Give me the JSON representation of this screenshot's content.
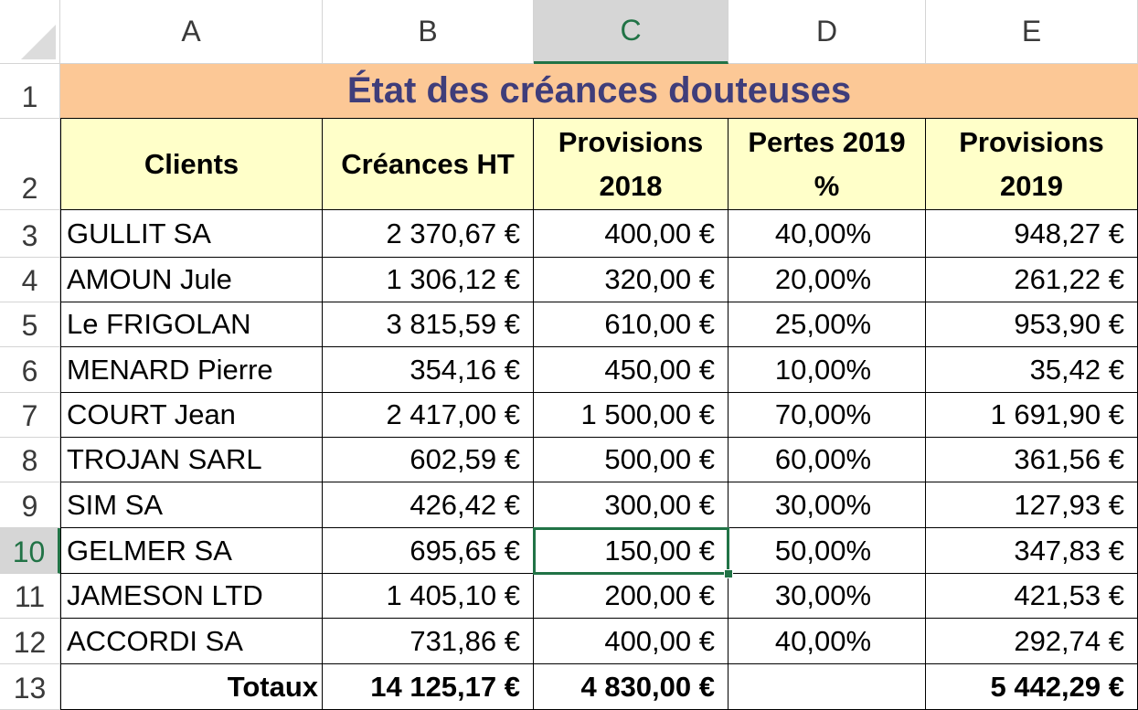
{
  "columns": [
    "A",
    "B",
    "C",
    "D",
    "E"
  ],
  "rows": [
    "1",
    "2",
    "3",
    "4",
    "5",
    "6",
    "7",
    "8",
    "9",
    "10",
    "11",
    "12",
    "13"
  ],
  "title": "État des créances douteuses",
  "headers": {
    "clients": "Clients",
    "creances": "Créances HT",
    "prov2018": "Provisions 2018",
    "pertes": "Pertes 2019 %",
    "prov2019": "Provisions 2019"
  },
  "data": [
    {
      "client": "GULLIT SA",
      "creances": "2 370,67 €",
      "prov2018": "400,00 €",
      "pertes": "40,00%",
      "prov2019": "948,27 €"
    },
    {
      "client": "AMOUN Jule",
      "creances": "1 306,12 €",
      "prov2018": "320,00 €",
      "pertes": "20,00%",
      "prov2019": "261,22 €"
    },
    {
      "client": "Le FRIGOLAN",
      "creances": "3 815,59 €",
      "prov2018": "610,00 €",
      "pertes": "25,00%",
      "prov2019": "953,90 €"
    },
    {
      "client": "MENARD Pierre",
      "creances": "354,16 €",
      "prov2018": "450,00 €",
      "pertes": "10,00%",
      "prov2019": "35,42 €"
    },
    {
      "client": "COURT Jean",
      "creances": "2 417,00 €",
      "prov2018": "1 500,00 €",
      "pertes": "70,00%",
      "prov2019": "1 691,90 €"
    },
    {
      "client": "TROJAN SARL",
      "creances": "602,59 €",
      "prov2018": "500,00 €",
      "pertes": "60,00%",
      "prov2019": "361,56 €"
    },
    {
      "client": "SIM SA",
      "creances": "426,42 €",
      "prov2018": "300,00 €",
      "pertes": "30,00%",
      "prov2019": "127,93 €"
    },
    {
      "client": "GELMER SA",
      "creances": "695,65 €",
      "prov2018": "150,00 €",
      "pertes": "50,00%",
      "prov2019": "347,83 €"
    },
    {
      "client": "JAMESON LTD",
      "creances": "1 405,10 €",
      "prov2018": "200,00 €",
      "pertes": "30,00%",
      "prov2019": "421,53 €"
    },
    {
      "client": "ACCORDI SA",
      "creances": "731,86 €",
      "prov2018": "400,00 €",
      "pertes": "40,00%",
      "prov2019": "292,74 €"
    }
  ],
  "totals": {
    "label": "Totaux",
    "creances": "14 125,17 €",
    "prov2018": "4 830,00 €",
    "pertes": "",
    "prov2019": "5 442,29 €"
  },
  "selection": {
    "active_cell": "C10"
  },
  "colors": {
    "accent": "#217346",
    "title_fill": "#fcc896",
    "title_text": "#3f3d7a",
    "header_fill": "#ffffc9"
  }
}
